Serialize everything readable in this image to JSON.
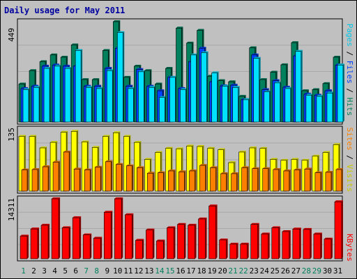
{
  "chart_data": {
    "type": "bar",
    "title": "Daily usage for May 2011",
    "categories": [
      "1",
      "2",
      "3",
      "4",
      "5",
      "6",
      "7",
      "8",
      "9",
      "10",
      "11",
      "12",
      "13",
      "14",
      "15",
      "16",
      "17",
      "18",
      "19",
      "20",
      "21",
      "22",
      "23",
      "24",
      "25",
      "26",
      "27",
      "28",
      "29",
      "30",
      "31"
    ],
    "weekend_days": [
      "1",
      "7",
      "8",
      "14",
      "15",
      "21",
      "22",
      "28",
      "29"
    ],
    "panels": [
      {
        "id": "top",
        "ymax_label": "449",
        "ylim": [
          0,
          449
        ],
        "legend": [
          "Pages",
          "Files",
          "Hits"
        ],
        "legend_colors": [
          "#00e0ff",
          "#0040ff",
          "#00805c"
        ],
        "series": [
          {
            "name": "Hits",
            "color": "#00805c",
            "values": [
              170,
              230,
              270,
              300,
              290,
              345,
              190,
              190,
              320,
              449,
              200,
              250,
              230,
              170,
              240,
              420,
              353,
              410,
              205,
              185,
              180,
              115,
              332,
              190,
              223,
              256,
              355,
              140,
              145,
              172,
              290
            ]
          },
          {
            "name": "Files",
            "color": "#0040ff",
            "values": [
              150,
              160,
              250,
              255,
              250,
              250,
              160,
              160,
              240,
              330,
              160,
              235,
              160,
              140,
              200,
              150,
              270,
              330,
              180,
              162,
              165,
              100,
              300,
              145,
              185,
              156,
              296,
              125,
              120,
              140,
              255
            ]
          },
          {
            "name": "Pages",
            "color": "#00e0ff",
            "values": [
              145,
              155,
              240,
              250,
              240,
              320,
              155,
              150,
              230,
              400,
              150,
              225,
              155,
              110,
              200,
              145,
              300,
              310,
              220,
              160,
              155,
              100,
              285,
              135,
              175,
              150,
              316,
              120,
              115,
              130,
              255
            ]
          }
        ]
      },
      {
        "id": "middle",
        "ymax_label": "135",
        "ylim": [
          0,
          135
        ],
        "legend": [
          "Sites",
          "Visits"
        ],
        "legend_colors": [
          "#ff8000",
          "#ffff00"
        ],
        "series": [
          {
            "name": "Visits",
            "color": "#ffff00",
            "values": [
              119,
              119,
              94,
              106,
              128,
              130,
              107,
              95,
              119,
              127,
              119,
              106,
              69,
              84,
              93,
              92,
              98,
              97,
              93,
              90,
              62,
              85,
              94,
              93,
              69,
              67,
              69,
              67,
              76,
              84,
              101
            ]
          },
          {
            "name": "Sites",
            "color": "#ff8000",
            "values": [
              46,
              47,
              53,
              63,
              85,
              48,
              46,
              52,
              64,
              58,
              55,
              51,
              39,
              40,
              44,
              42,
              44,
              56,
              51,
              38,
              38,
              51,
              49,
              49,
              47,
              44,
              46,
              48,
              40,
              41,
              47
            ]
          }
        ]
      },
      {
        "id": "bottom",
        "ymax_label": "14311",
        "ylim": [
          0,
          14311
        ],
        "legend": [
          "KBytes"
        ],
        "legend_colors": [
          "#ff0000"
        ],
        "series": [
          {
            "name": "KBytes",
            "color": "#ff0000",
            "values": [
              5400,
              7120,
              8000,
              14311,
              7400,
              9800,
              5700,
              4900,
              11100,
              14311,
              10500,
              4400,
              6860,
              4240,
              7400,
              8200,
              8000,
              9500,
              12600,
              4500,
              3500,
              3500,
              8200,
              5900,
              7400,
              6500,
              7100,
              7000,
              5900,
              4700,
              13600
            ]
          }
        ]
      }
    ]
  }
}
